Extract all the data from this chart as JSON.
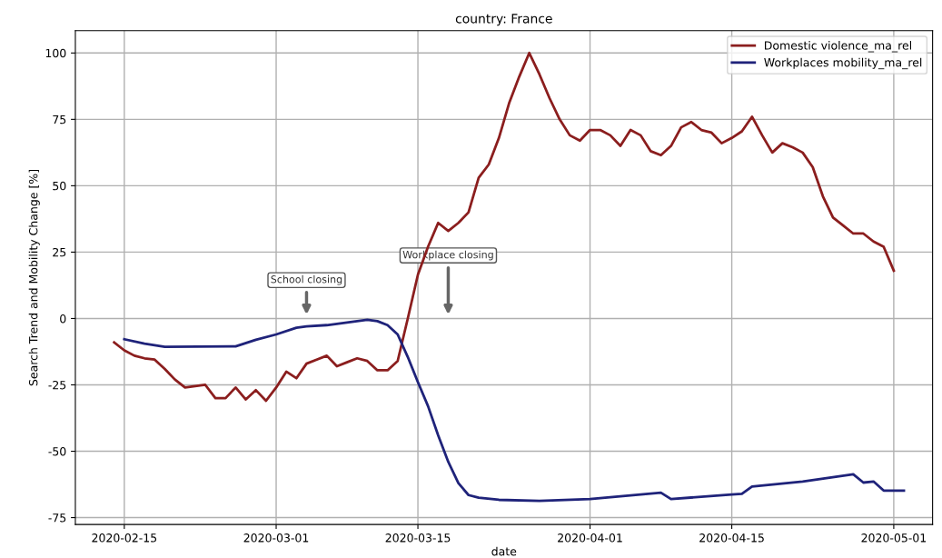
{
  "chart_data": {
    "type": "line",
    "title": "country: France",
    "xlabel": "date",
    "ylabel": "Search Trend and Mobility Change [%]",
    "xlim": [
      "2020-02-10T04:00",
      "2020-05-04T20:00"
    ],
    "ylim": [
      -77.6,
      108.4
    ],
    "xticks": [
      "2020-02-15",
      "2020-03-01",
      "2020-03-15",
      "2020-04-01",
      "2020-04-15",
      "2020-05-01"
    ],
    "yticks": [
      -75,
      -50,
      -25,
      0,
      25,
      50,
      75,
      100
    ],
    "grid": true,
    "legend": "top right",
    "line_style": "solid",
    "marker": "none",
    "series": [
      {
        "name": "Domestic violence_ma_rel",
        "color": "#8b1e1e",
        "x": [
          "2020-02-14",
          "2020-02-15",
          "2020-02-16",
          "2020-02-17",
          "2020-02-18",
          "2020-02-19",
          "2020-02-20",
          "2020-02-21",
          "2020-02-22",
          "2020-02-23",
          "2020-02-24",
          "2020-02-25",
          "2020-02-26",
          "2020-02-27",
          "2020-02-28",
          "2020-02-29",
          "2020-03-01",
          "2020-03-02",
          "2020-03-03",
          "2020-03-04",
          "2020-03-05",
          "2020-03-06",
          "2020-03-07",
          "2020-03-08",
          "2020-03-09",
          "2020-03-10",
          "2020-03-11",
          "2020-03-12",
          "2020-03-13",
          "2020-03-14",
          "2020-03-15",
          "2020-03-16",
          "2020-03-17",
          "2020-03-18",
          "2020-03-19",
          "2020-03-20",
          "2020-03-21",
          "2020-03-22",
          "2020-03-23",
          "2020-03-24",
          "2020-03-25",
          "2020-03-26",
          "2020-03-27",
          "2020-03-28",
          "2020-03-29",
          "2020-03-30",
          "2020-03-31",
          "2020-04-01",
          "2020-04-02",
          "2020-04-03",
          "2020-04-04",
          "2020-04-05",
          "2020-04-06",
          "2020-04-07",
          "2020-04-08",
          "2020-04-09",
          "2020-04-10",
          "2020-04-11",
          "2020-04-12",
          "2020-04-13",
          "2020-04-14",
          "2020-04-15",
          "2020-04-16",
          "2020-04-17",
          "2020-04-18",
          "2020-04-19",
          "2020-04-20",
          "2020-04-21",
          "2020-04-22",
          "2020-04-23",
          "2020-04-24",
          "2020-04-25",
          "2020-04-26",
          "2020-04-27",
          "2020-04-28",
          "2020-04-29",
          "2020-04-30",
          "2020-05-01"
        ],
        "values": [
          -9,
          -12,
          -14,
          -15,
          -15.5,
          -19,
          -23,
          -26,
          -25.5,
          -25,
          -30,
          -30,
          -26,
          -30.5,
          -27,
          -31,
          -26,
          -20,
          -22.5,
          -17,
          -15.5,
          -14,
          -18,
          -16.5,
          -15,
          -16,
          -19.5,
          -19.5,
          -16,
          0,
          16.5,
          27,
          36,
          33,
          36,
          40,
          53,
          58,
          68,
          81,
          91,
          100,
          92,
          83,
          75,
          69,
          67,
          71,
          71,
          69,
          65,
          71,
          69,
          63,
          61.5,
          65,
          72,
          74,
          71,
          70,
          66,
          68,
          70.5,
          76,
          69,
          62.5,
          66,
          64.5,
          62.5,
          57,
          46,
          38,
          35,
          32,
          32,
          29,
          27,
          18
        ]
      },
      {
        "name": "Workplaces mobility_ma_rel",
        "color": "#1f237a",
        "x": [
          "2020-02-15",
          "2020-02-17",
          "2020-02-19",
          "2020-02-26",
          "2020-02-28",
          "2020-03-01",
          "2020-03-03",
          "2020-03-04",
          "2020-03-06",
          "2020-03-08",
          "2020-03-10",
          "2020-03-11",
          "2020-03-12",
          "2020-03-13",
          "2020-03-14",
          "2020-03-15",
          "2020-03-16",
          "2020-03-17",
          "2020-03-18",
          "2020-03-19",
          "2020-03-20",
          "2020-03-21",
          "2020-03-23",
          "2020-03-27",
          "2020-04-01",
          "2020-04-08",
          "2020-04-09",
          "2020-04-15",
          "2020-04-16",
          "2020-04-17",
          "2020-04-22",
          "2020-04-27",
          "2020-04-28",
          "2020-04-29",
          "2020-04-30",
          "2020-05-02"
        ],
        "values": [
          -7.8,
          -9.5,
          -10.7,
          -10.5,
          -8,
          -6,
          -3.5,
          -3,
          -2.5,
          -1.5,
          -0.5,
          -1,
          -2.5,
          -6,
          -14.5,
          -24,
          -33,
          -44,
          -54,
          -62,
          -66.5,
          -67.5,
          -68.3,
          -68.7,
          -68,
          -65.6,
          -68,
          -66.3,
          -66,
          -63.3,
          -61.4,
          -58.7,
          -61.8,
          -61.4,
          -64.8,
          -64.8
        ]
      }
    ],
    "annotations": [
      "School closing",
      "Workplace closing"
    ]
  }
}
